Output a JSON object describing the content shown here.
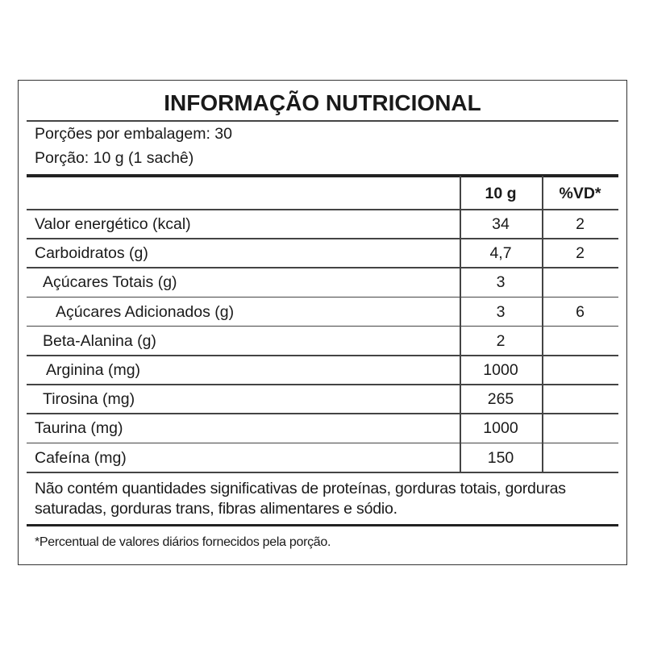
{
  "title": "INFORMAÇÃO NUTRICIONAL",
  "servings_per_package": "Porções por embalagem: 30",
  "serving_size": "Porção: 10 g (1 sachê)",
  "columns": {
    "amount": "10 g",
    "dv": "%VD*"
  },
  "rows": [
    {
      "label": "Valor energético (kcal)",
      "amount": "34",
      "dv": "2"
    },
    {
      "label": "Carboidratos (g)",
      "amount": "4,7",
      "dv": "2"
    },
    {
      "label": "Açúcares Totais (g)",
      "amount": "3",
      "dv": ""
    },
    {
      "label": "Açúcares Adicionados (g)",
      "amount": "3",
      "dv": "6"
    },
    {
      "label": "Beta-Alanina (g)",
      "amount": "2",
      "dv": ""
    },
    {
      "label": "Arginina (mg)",
      "amount": "1000",
      "dv": ""
    },
    {
      "label": "Tirosina (mg)",
      "amount": "265",
      "dv": ""
    },
    {
      "label": "Taurina (mg)",
      "amount": "1000",
      "dv": ""
    },
    {
      "label": "Cafeína (mg)",
      "amount": "150",
      "dv": ""
    }
  ],
  "note": "Não contém quantidades significativas de proteínas, gorduras totais, gorduras saturadas, gorduras trans, fibras alimentares e sódio.",
  "footnote": "*Percentual de valores diários fornecidos pela porção."
}
